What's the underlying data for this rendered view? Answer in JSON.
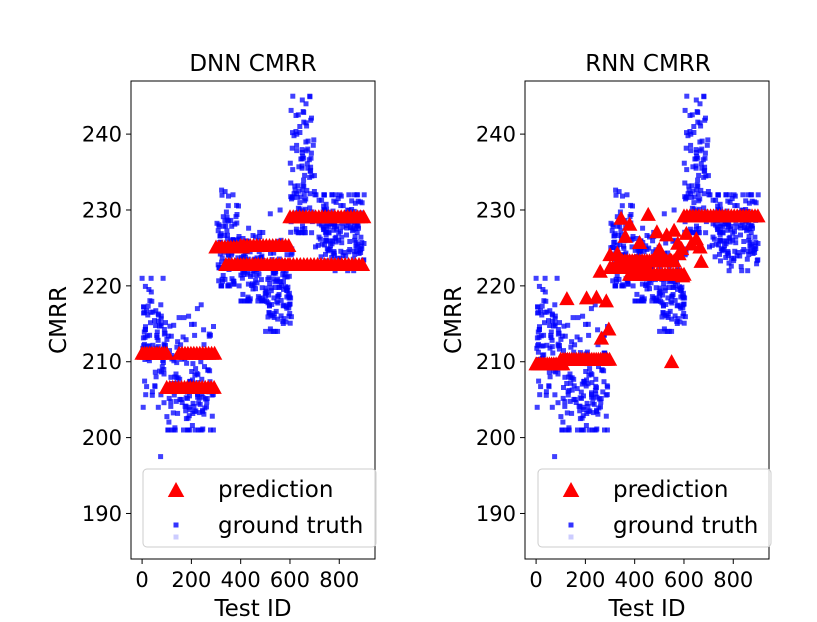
{
  "colors": {
    "prediction": "#ff0000",
    "ground_truth": "#0000ff",
    "axes": "#000000",
    "legend_border": "#cccccc",
    "background": "#ffffff"
  },
  "chart_data": [
    {
      "type": "scatter",
      "title": "DNN CMRR",
      "xlabel": "Test ID",
      "ylabel": "CMRR",
      "xlim": [
        -45,
        945
      ],
      "ylim": [
        184,
        247
      ],
      "xticks": [
        0,
        200,
        400,
        600,
        800
      ],
      "xtick_labels": [
        "0",
        "200",
        "400",
        "600",
        "800"
      ],
      "yticks": [
        190,
        200,
        210,
        220,
        230,
        240
      ],
      "ytick_labels": [
        "190",
        "200",
        "210",
        "220",
        "230",
        "240"
      ],
      "grid": false,
      "legend": {
        "placement": "lower-right",
        "entries": [
          "prediction",
          "ground truth"
        ]
      },
      "series": [
        {
          "name": "ground truth",
          "marker": "square",
          "color": "#0000ff",
          "clusters": [
            {
              "x_range": [
                0,
                95
              ],
              "y_min": 204,
              "y_max": 221,
              "y_center": 213,
              "n": 85
            },
            {
              "x_range": [
                100,
                290
              ],
              "y_min": 201,
              "y_max": 217,
              "y_center": 207,
              "n": 150
            },
            {
              "x_range": [
                300,
                395
              ],
              "y_min": 220,
              "y_max": 233,
              "y_center": 226,
              "n": 90
            },
            {
              "x_range": [
                400,
                500
              ],
              "y_min": 218,
              "y_max": 230,
              "y_center": 222,
              "n": 100
            },
            {
              "x_range": [
                500,
                610
              ],
              "y_min": 214,
              "y_max": 226,
              "y_center": 219.5,
              "n": 110
            },
            {
              "x_range": [
                600,
                700
              ],
              "y_min": 227,
              "y_max": 245,
              "y_center": 235,
              "n": 100
            },
            {
              "x_range": [
                700,
                905
              ],
              "y_min": 222,
              "y_max": 232,
              "y_center": 227.5,
              "n": 170
            }
          ],
          "points": [
            [
              75,
              197.5
            ],
            [
              240,
              217.5
            ],
            [
              520,
              229.5
            ],
            [
              560,
              230
            ],
            [
              650,
              244.5
            ],
            [
              665,
              244
            ],
            [
              640,
              241
            ],
            [
              860,
              232
            ]
          ]
        },
        {
          "name": "prediction",
          "marker": "triangle",
          "color": "#ff0000",
          "segments": [
            {
              "x_start": 0,
              "x_end": 100,
              "y": 211,
              "step": 10
            },
            {
              "x_start": 100,
              "x_end": 300,
              "y": 206.5,
              "step": 12
            },
            {
              "x_start": 150,
              "x_end": 300,
              "y": 211,
              "step": 12
            },
            {
              "x_start": 300,
              "x_end": 410,
              "y": 225,
              "step": 12
            },
            {
              "x_start": 340,
              "x_end": 600,
              "y": 222.7,
              "step": 12
            },
            {
              "x_start": 400,
              "x_end": 600,
              "y": 225.2,
              "step": 13
            },
            {
              "x_start": 600,
              "x_end": 900,
              "y": 222.7,
              "step": 14
            },
            {
              "x_start": 600,
              "x_end": 905,
              "y": 229,
              "step": 13
            }
          ]
        }
      ]
    },
    {
      "type": "scatter",
      "title": "RNN CMRR",
      "xlabel": "Test ID",
      "ylabel": "CMRR",
      "xlim": [
        -45,
        945
      ],
      "ylim": [
        184,
        247
      ],
      "xticks": [
        0,
        200,
        400,
        600,
        800
      ],
      "xtick_labels": [
        "0",
        "200",
        "400",
        "600",
        "800"
      ],
      "yticks": [
        190,
        200,
        210,
        220,
        230,
        240
      ],
      "ytick_labels": [
        "190",
        "200",
        "210",
        "220",
        "230",
        "240"
      ],
      "grid": false,
      "legend": {
        "placement": "lower-right",
        "entries": [
          "prediction",
          "ground truth"
        ]
      },
      "series": [
        {
          "name": "ground truth",
          "marker": "square",
          "color": "#0000ff",
          "clusters": [
            {
              "x_range": [
                0,
                95
              ],
              "y_min": 204,
              "y_max": 221,
              "y_center": 213,
              "n": 85
            },
            {
              "x_range": [
                100,
                290
              ],
              "y_min": 201,
              "y_max": 217,
              "y_center": 207,
              "n": 150
            },
            {
              "x_range": [
                300,
                395
              ],
              "y_min": 220,
              "y_max": 233,
              "y_center": 226,
              "n": 90
            },
            {
              "x_range": [
                400,
                500
              ],
              "y_min": 218,
              "y_max": 230,
              "y_center": 222,
              "n": 100
            },
            {
              "x_range": [
                500,
                610
              ],
              "y_min": 214,
              "y_max": 226,
              "y_center": 219.5,
              "n": 110
            },
            {
              "x_range": [
                600,
                700
              ],
              "y_min": 227,
              "y_max": 245,
              "y_center": 235,
              "n": 100
            },
            {
              "x_range": [
                700,
                905
              ],
              "y_min": 222,
              "y_max": 232,
              "y_center": 227.5,
              "n": 170
            }
          ],
          "points": [
            [
              75,
              197.5
            ],
            [
              240,
              217.5
            ],
            [
              520,
              229.5
            ],
            [
              560,
              230
            ],
            [
              650,
              244.5
            ],
            [
              665,
              244
            ],
            [
              640,
              241
            ],
            [
              860,
              232
            ]
          ]
        },
        {
          "name": "prediction",
          "marker": "triangle",
          "color": "#ff0000",
          "segments": [
            {
              "x_start": 0,
              "x_end": 110,
              "y": 209.6,
              "step": 9
            },
            {
              "x_start": 100,
              "x_end": 300,
              "y": 210.2,
              "step": 9
            },
            {
              "x_start": 300,
              "x_end": 420,
              "y": 222.3,
              "step": 10
            },
            {
              "x_start": 340,
              "x_end": 560,
              "y": 223.2,
              "step": 10
            },
            {
              "x_start": 380,
              "x_end": 600,
              "y": 221.4,
              "step": 11
            },
            {
              "x_start": 600,
              "x_end": 905,
              "y": 229.1,
              "step": 12
            }
          ],
          "points": [
            [
              125,
              218.2
            ],
            [
              205,
              218.3
            ],
            [
              245,
              218.4
            ],
            [
              285,
              217.9
            ],
            [
              265,
              213
            ],
            [
              295,
              214.2
            ],
            [
              260,
              221.8
            ],
            [
              300,
              224
            ],
            [
              330,
              224.2
            ],
            [
              345,
              228.8
            ],
            [
              362,
              226.4
            ],
            [
              380,
              228
            ],
            [
              455,
              229.3
            ],
            [
              490,
              227
            ],
            [
              530,
              226.6
            ],
            [
              560,
              227.2
            ],
            [
              575,
              225.5
            ],
            [
              590,
              224.8
            ],
            [
              610,
              226.8
            ],
            [
              630,
              225.4
            ],
            [
              650,
              226.1
            ],
            [
              665,
              225
            ],
            [
              580,
              224.1
            ],
            [
              545,
              223.3
            ],
            [
              550,
              209.9
            ],
            [
              670,
              223.1
            ],
            [
              500,
              224.7
            ],
            [
              420,
              225.6
            ],
            [
              440,
              222.9
            ],
            [
              595,
              221.2
            ]
          ]
        }
      ]
    }
  ]
}
